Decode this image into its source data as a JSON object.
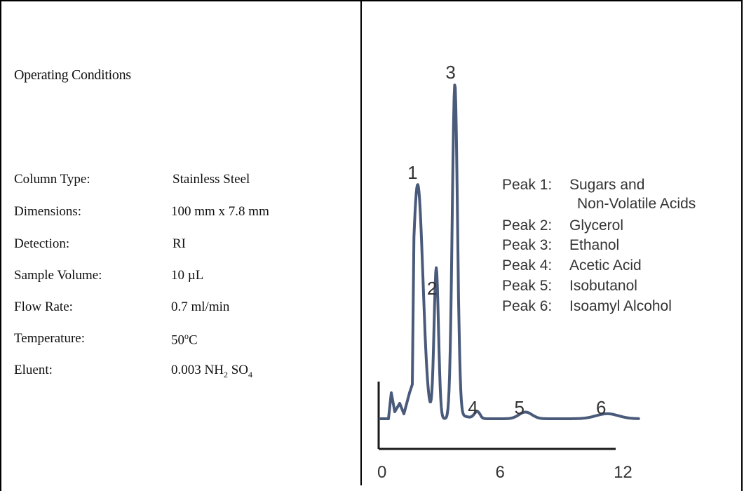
{
  "panel_left": {
    "title": "Operating Conditions",
    "rows": [
      {
        "label": "Column Type:",
        "value": "Stainless Steel"
      },
      {
        "label": "Dimensions:",
        "value": "100 mm x 7.8 mm"
      },
      {
        "label": "Detection:",
        "value": "RI"
      },
      {
        "label": "Sample Volume:",
        "value": "10 µL"
      },
      {
        "label": "Flow Rate:",
        "value": "0.7 ml/min"
      },
      {
        "label": "Temperature:",
        "value": "50",
        "value_sup": "o",
        "value_suffix": "C"
      },
      {
        "label": "Eluent:",
        "value": "0.003 NH",
        "sub1": "2",
        "mid": " SO",
        "sub2": "4"
      }
    ]
  },
  "chart_data": {
    "type": "line",
    "title": "",
    "xlabel": "",
    "ylabel": "",
    "x_ticks": [
      "0",
      "6",
      "12"
    ],
    "xlim": [
      0,
      14
    ],
    "line_color": "#4a5a7a",
    "peaks": [
      {
        "label": "1",
        "x": 2.1,
        "height": 0.7
      },
      {
        "label": "2",
        "x": 3.1,
        "height": 0.45
      },
      {
        "label": "3",
        "x": 4.1,
        "height": 1.0
      },
      {
        "label": "4",
        "x": 5.3,
        "height": 0.02
      },
      {
        "label": "5",
        "x": 7.9,
        "height": 0.02
      },
      {
        "label": "6",
        "x": 12.3,
        "height": 0.015
      }
    ],
    "legend": [
      {
        "key": "Peak 1:",
        "value": "Sugars and"
      },
      {
        "key": "",
        "value": "Non-Volatile Acids"
      },
      {
        "key": "Peak 2:",
        "value": "Glycerol"
      },
      {
        "key": "Peak 3:",
        "value": "Ethanol"
      },
      {
        "key": "Peak 4:",
        "value": "Acetic Acid"
      },
      {
        "key": "Peak 5:",
        "value": "Isobutanol"
      },
      {
        "key": "Peak 6:",
        "value": "Isoamyl Alcohol"
      }
    ]
  }
}
